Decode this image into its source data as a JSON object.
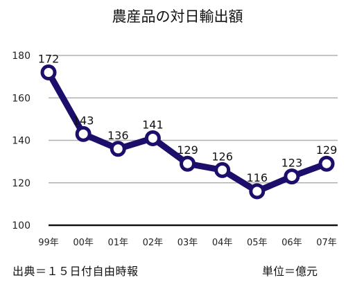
{
  "chart_data": {
    "type": "line",
    "title": "農産品の対日輸出額",
    "categories": [
      "99年",
      "00年",
      "01年",
      "02年",
      "03年",
      "04年",
      "05年",
      "06年",
      "07年"
    ],
    "series": [
      {
        "values": [
          172,
          143,
          136,
          141,
          129,
          126,
          116,
          123,
          129
        ]
      }
    ],
    "ylim": [
      100,
      180
    ],
    "yticks": [
      100,
      120,
      140,
      160,
      180
    ],
    "grid": true,
    "data_labels": true,
    "line_color": "#1b0f6b",
    "marker_fill": "#ffffff",
    "grid_color": "#b0b0b0"
  },
  "footer": {
    "source": "出典＝１５日付自由時報",
    "unit": "単位＝億元"
  }
}
